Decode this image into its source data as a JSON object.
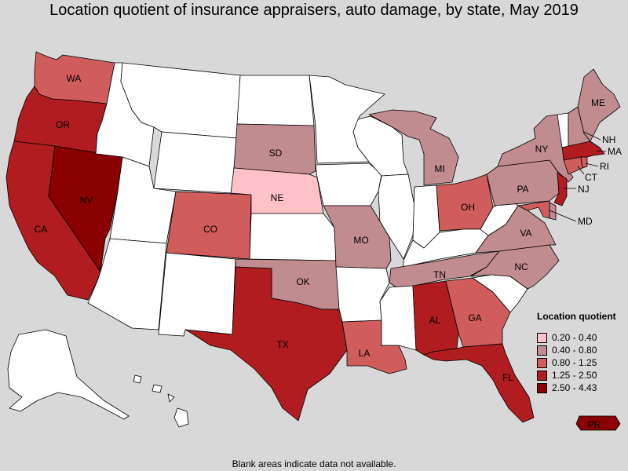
{
  "title": "Location quotient of insurance appraisers, auto damage, by state, May 2019",
  "footnote": "Blank areas indicate data not available.",
  "legend": {
    "title": "Location quotient",
    "bins": [
      {
        "label": "0.20 - 0.40",
        "color": "#ffc0c8"
      },
      {
        "label": "0.40 - 0.80",
        "color": "#c08c90"
      },
      {
        "label": "0.80 - 1.25",
        "color": "#d05c5c"
      },
      {
        "label": "1.25 - 2.50",
        "color": "#b01c20"
      },
      {
        "label": "2.50 - 4.43",
        "color": "#8b0000"
      }
    ]
  },
  "blank_color": "#ffffff",
  "states": {
    "WA": {
      "label": "WA",
      "bin": 2
    },
    "OR": {
      "label": "OR",
      "bin": 3
    },
    "CA": {
      "label": "CA",
      "bin": 3
    },
    "NV": {
      "label": "NV",
      "bin": 4
    },
    "CO": {
      "label": "CO",
      "bin": 2
    },
    "SD": {
      "label": "SD",
      "bin": 1
    },
    "NE": {
      "label": "NE",
      "bin": 0
    },
    "TX": {
      "label": "TX",
      "bin": 3
    },
    "OK": {
      "label": "OK",
      "bin": 1
    },
    "MO": {
      "label": "MO",
      "bin": 1
    },
    "LA": {
      "label": "LA",
      "bin": 2
    },
    "MI": {
      "label": "MI",
      "bin": 1
    },
    "OH": {
      "label": "OH",
      "bin": 2
    },
    "TN": {
      "label": "TN",
      "bin": 1
    },
    "AL": {
      "label": "AL",
      "bin": 3
    },
    "GA": {
      "label": "GA",
      "bin": 2
    },
    "FL": {
      "label": "FL",
      "bin": 3
    },
    "NC": {
      "label": "NC",
      "bin": 1
    },
    "VA": {
      "label": "VA",
      "bin": 1
    },
    "PA": {
      "label": "PA",
      "bin": 1
    },
    "NY": {
      "label": "NY",
      "bin": 1
    },
    "ME": {
      "label": "ME",
      "bin": 1
    },
    "VT": {
      "label": "",
      "bin": null
    },
    "NH": {
      "label": "NH",
      "bin": 1
    },
    "MA": {
      "label": "MA",
      "bin": 3
    },
    "RI": {
      "label": "RI",
      "bin": 2
    },
    "CT": {
      "label": "CT",
      "bin": 2
    },
    "NJ": {
      "label": "NJ",
      "bin": 3
    },
    "MD": {
      "label": "MD",
      "bin": 2
    },
    "DE": {
      "label": "",
      "bin": 1
    },
    "WV": {
      "label": "",
      "bin": null
    },
    "PR": {
      "label": "PR",
      "bin": 4
    },
    "ID": {
      "label": "",
      "bin": null
    },
    "MT": {
      "label": "",
      "bin": null
    },
    "WY": {
      "label": "",
      "bin": null
    },
    "UT": {
      "label": "",
      "bin": null
    },
    "AZ": {
      "label": "",
      "bin": null
    },
    "NM": {
      "label": "",
      "bin": null
    },
    "ND": {
      "label": "",
      "bin": null
    },
    "KS": {
      "label": "",
      "bin": null
    },
    "MN": {
      "label": "",
      "bin": null
    },
    "IA": {
      "label": "",
      "bin": null
    },
    "AR": {
      "label": "",
      "bin": null
    },
    "WI": {
      "label": "",
      "bin": null
    },
    "IL": {
      "label": "",
      "bin": null
    },
    "IN": {
      "label": "",
      "bin": null
    },
    "KY": {
      "label": "",
      "bin": null
    },
    "MS": {
      "label": "",
      "bin": null
    },
    "SC": {
      "label": "",
      "bin": null
    },
    "AK": {
      "label": "",
      "bin": null
    },
    "HI": {
      "label": "",
      "bin": null
    }
  }
}
